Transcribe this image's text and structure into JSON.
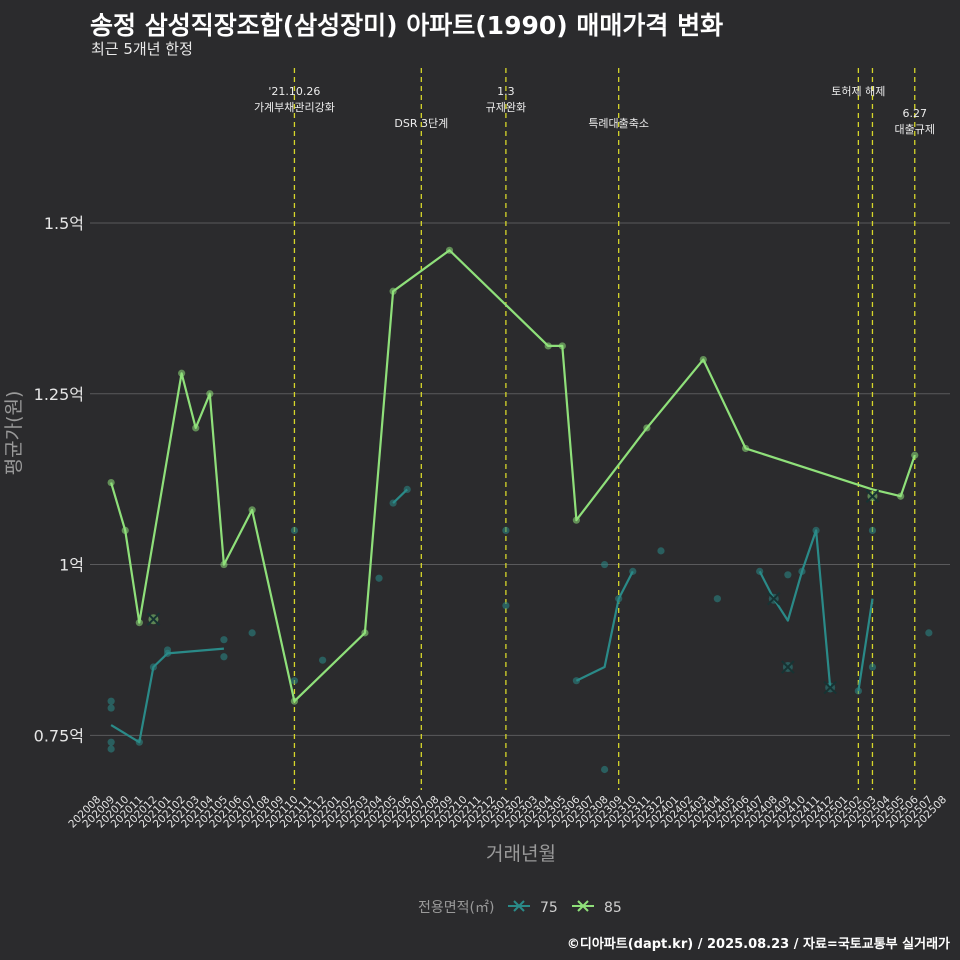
{
  "header": {
    "title": "송정 삼성직장조합(삼성장미) 아파트(1990) 매매가격 변화",
    "subtitle": "최근 5개년 한정"
  },
  "caption": "©디아파트(dapt.kr) / 2025.08.23 / 자료=국토교통부 실거래가",
  "colors": {
    "background": "#2b2b2d",
    "grid": "#5a5a5c",
    "vline": "#d6d62a",
    "s75": "#2a8a88",
    "s85": "#8fe07a",
    "text": "#e6e6e6"
  },
  "chart_data": {
    "type": "line",
    "xlabel": "거래년월",
    "ylabel": "평균가(원)",
    "ylim": [
      0.67,
      1.68
    ],
    "y_ticks": [
      {
        "value": 0.75,
        "label": "0.75억"
      },
      {
        "value": 1.0,
        "label": "1억"
      },
      {
        "value": 1.25,
        "label": "1.25억"
      },
      {
        "value": 1.5,
        "label": "1.5억"
      }
    ],
    "x_ticks": [
      "202008",
      "202009",
      "202010",
      "202011",
      "202012",
      "202101",
      "202102",
      "202103",
      "202104",
      "202105",
      "202106",
      "202107",
      "202108",
      "202109",
      "202110",
      "202111",
      "202112",
      "202201",
      "202202",
      "202203",
      "202204",
      "202205",
      "202206",
      "202207",
      "202208",
      "202209",
      "202210",
      "202211",
      "202212",
      "202301",
      "202302",
      "202303",
      "202304",
      "202305",
      "202306",
      "202307",
      "202308",
      "202309",
      "202310",
      "202311",
      "202312",
      "202401",
      "202402",
      "202403",
      "202404",
      "202405",
      "202406",
      "202407",
      "202408",
      "202409",
      "202410",
      "202411",
      "202412",
      "202501",
      "202502",
      "202503",
      "202504",
      "202505",
      "202506",
      "202507",
      "202508"
    ],
    "legend": {
      "title": "전용면적(㎡)",
      "position": "bottom"
    },
    "annotations": [
      {
        "x": "202110",
        "lines": [
          "'21.10.26",
          "가계부채관리강화"
        ],
        "row": 1
      },
      {
        "x": "202207",
        "lines": [
          "DSR 3단계"
        ],
        "row": 2
      },
      {
        "x": "202301",
        "lines": [
          "1.3",
          "규제완화"
        ],
        "row": 1
      },
      {
        "x": "202309",
        "lines": [
          "특례대출축소"
        ],
        "row": 2
      },
      {
        "x": "202502",
        "lines": [
          "토허제 해제"
        ],
        "row": 1
      },
      {
        "x": "202503",
        "lines": [],
        "row": 1
      },
      {
        "x": "202506",
        "lines": [
          "6.27",
          "대출규제"
        ],
        "row": 3
      }
    ],
    "series": [
      {
        "name": "75",
        "color": "#2a8a88",
        "line": [
          {
            "x": "202009",
            "y": 0.765
          },
          {
            "x": "202011",
            "y": 0.74
          },
          {
            "x": "202012",
            "y": 0.85
          },
          {
            "x": "202101",
            "y": 0.87
          },
          {
            "x": "202105",
            "y": 0.877
          },
          {
            "x": null
          },
          {
            "x": "202205",
            "y": 1.09
          },
          {
            "x": "202206",
            "y": 1.11
          },
          {
            "x": null
          },
          {
            "x": "202306",
            "y": 0.83
          },
          {
            "x": "202308",
            "y": 0.85
          },
          {
            "x": "202309",
            "y": 0.95
          },
          {
            "x": "202310",
            "y": 0.99
          },
          {
            "x": null
          },
          {
            "x": "202407",
            "y": 0.99
          },
          {
            "x": "202408",
            "y": 0.95
          },
          {
            "x": "202409",
            "y": 0.918
          },
          {
            "x": "202410",
            "y": 0.99
          },
          {
            "x": "202411",
            "y": 1.05
          },
          {
            "x": "202412",
            "y": 0.82
          },
          {
            "x": null
          },
          {
            "x": "202502",
            "y": 0.815
          },
          {
            "x": "202503",
            "y": 0.95
          }
        ],
        "points": [
          {
            "x": "202009",
            "y": 0.8
          },
          {
            "x": "202009",
            "y": 0.79
          },
          {
            "x": "202009",
            "y": 0.74
          },
          {
            "x": "202009",
            "y": 0.73
          },
          {
            "x": "202011",
            "y": 0.74
          },
          {
            "x": "202012",
            "y": 0.85
          },
          {
            "x": "202101",
            "y": 0.87
          },
          {
            "x": "202101",
            "y": 0.875
          },
          {
            "x": "202105",
            "y": 0.89
          },
          {
            "x": "202105",
            "y": 0.865
          },
          {
            "x": "202107",
            "y": 0.9
          },
          {
            "x": "202110",
            "y": 1.05
          },
          {
            "x": "202110",
            "y": 0.83
          },
          {
            "x": "202112",
            "y": 0.86
          },
          {
            "x": "202204",
            "y": 0.98
          },
          {
            "x": "202205",
            "y": 1.09
          },
          {
            "x": "202206",
            "y": 1.11
          },
          {
            "x": "202301",
            "y": 1.05
          },
          {
            "x": "202301",
            "y": 0.94
          },
          {
            "x": "202306",
            "y": 0.83
          },
          {
            "x": "202308",
            "y": 1.0
          },
          {
            "x": "202308",
            "y": 0.7
          },
          {
            "x": "202309",
            "y": 0.95
          },
          {
            "x": "202310",
            "y": 0.99
          },
          {
            "x": "202312",
            "y": 1.02
          },
          {
            "x": "202404",
            "y": 0.95
          },
          {
            "x": "202407",
            "y": 0.99
          },
          {
            "x": "202409",
            "y": 0.985
          },
          {
            "x": "202410",
            "y": 0.99
          },
          {
            "x": "202411",
            "y": 1.05
          },
          {
            "x": "202502",
            "y": 0.815
          },
          {
            "x": "202503",
            "y": 1.05
          },
          {
            "x": "202503",
            "y": 0.85
          },
          {
            "x": "202507",
            "y": 0.9
          }
        ],
        "crosses": [
          {
            "x": "202408",
            "y": 0.95
          },
          {
            "x": "202409",
            "y": 0.85
          },
          {
            "x": "202412",
            "y": 0.82
          }
        ]
      },
      {
        "name": "85",
        "color": "#8fe07a",
        "line": [
          {
            "x": "202009",
            "y": 1.12
          },
          {
            "x": "202010",
            "y": 1.05
          },
          {
            "x": "202011",
            "y": 0.915
          },
          {
            "x": "202102",
            "y": 1.28
          },
          {
            "x": "202103",
            "y": 1.2
          },
          {
            "x": "202104",
            "y": 1.25
          },
          {
            "x": "202105",
            "y": 1.0
          },
          {
            "x": "202107",
            "y": 1.08
          },
          {
            "x": "202110",
            "y": 0.8
          },
          {
            "x": "202203",
            "y": 0.9
          },
          {
            "x": "202205",
            "y": 1.4
          },
          {
            "x": "202209",
            "y": 1.46
          },
          {
            "x": "202304",
            "y": 1.32
          },
          {
            "x": "202305",
            "y": 1.32
          },
          {
            "x": "202306",
            "y": 1.065
          },
          {
            "x": "202311",
            "y": 1.2
          },
          {
            "x": "202403",
            "y": 1.3
          },
          {
            "x": "202406",
            "y": 1.17
          },
          {
            "x": "202503",
            "y": 1.11
          },
          {
            "x": "202505",
            "y": 1.1
          },
          {
            "x": "202506",
            "y": 1.16
          }
        ],
        "points": [
          {
            "x": "202009",
            "y": 1.12
          },
          {
            "x": "202010",
            "y": 1.05
          },
          {
            "x": "202011",
            "y": 0.915
          },
          {
            "x": "202102",
            "y": 1.28
          },
          {
            "x": "202103",
            "y": 1.2
          },
          {
            "x": "202104",
            "y": 1.25
          },
          {
            "x": "202105",
            "y": 1.0
          },
          {
            "x": "202107",
            "y": 1.08
          },
          {
            "x": "202110",
            "y": 0.8
          },
          {
            "x": "202203",
            "y": 0.9
          },
          {
            "x": "202205",
            "y": 1.4
          },
          {
            "x": "202209",
            "y": 1.46
          },
          {
            "x": "202304",
            "y": 1.32
          },
          {
            "x": "202305",
            "y": 1.32
          },
          {
            "x": "202306",
            "y": 1.065
          },
          {
            "x": "202311",
            "y": 1.2
          },
          {
            "x": "202403",
            "y": 1.3
          },
          {
            "x": "202406",
            "y": 1.17
          },
          {
            "x": "202505",
            "y": 1.1
          },
          {
            "x": "202506",
            "y": 1.16
          }
        ],
        "crosses": [
          {
            "x": "202012",
            "y": 0.92
          },
          {
            "x": "202503",
            "y": 1.1
          }
        ]
      }
    ]
  }
}
